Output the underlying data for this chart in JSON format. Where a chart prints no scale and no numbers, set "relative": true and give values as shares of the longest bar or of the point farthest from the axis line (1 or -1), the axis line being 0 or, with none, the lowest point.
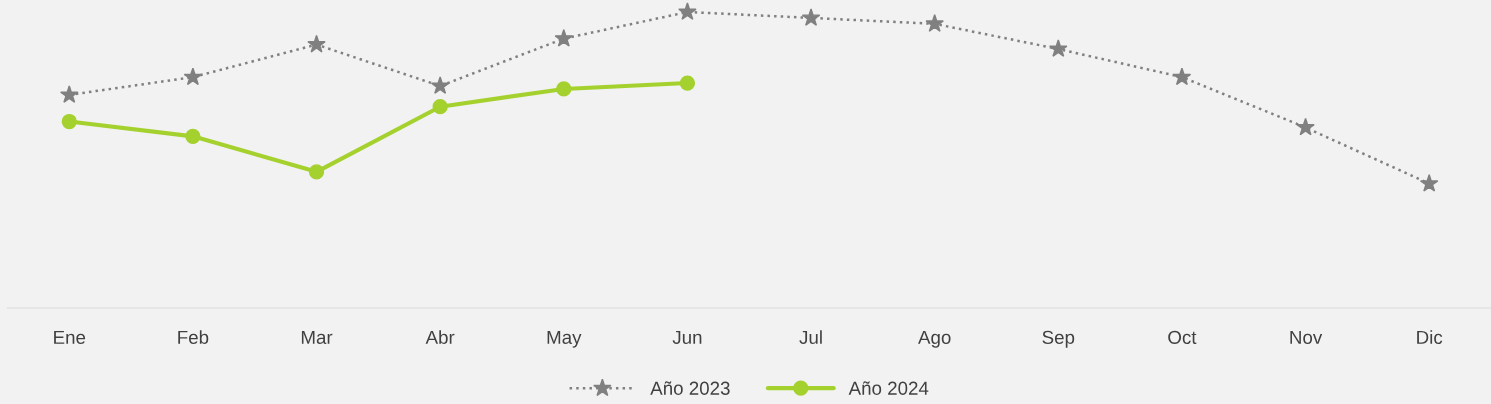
{
  "chart_data": {
    "type": "line",
    "relative": true,
    "categories": [
      "Ene",
      "Feb",
      "Mar",
      "Abr",
      "May",
      "Jun",
      "Jul",
      "Ago",
      "Sep",
      "Oct",
      "Nov",
      "Dic"
    ],
    "series": [
      {
        "name": "Año 2023",
        "color": "#808080",
        "marker": "star",
        "line_style": "dotted",
        "values": [
          0.72,
          0.78,
          0.89,
          0.75,
          0.91,
          1,
          0.98,
          0.96,
          0.875,
          0.78,
          0.61,
          0.42
        ]
      },
      {
        "name": "Año 2024",
        "color": "#a5d12f",
        "marker": "circle",
        "line_style": "solid",
        "values": [
          0.63,
          0.58,
          0.46,
          0.68,
          0.74,
          0.76,
          null,
          null,
          null,
          null,
          null,
          null
        ]
      }
    ],
    "legend": "bottom",
    "grid": false,
    "tick_labels": "x"
  }
}
